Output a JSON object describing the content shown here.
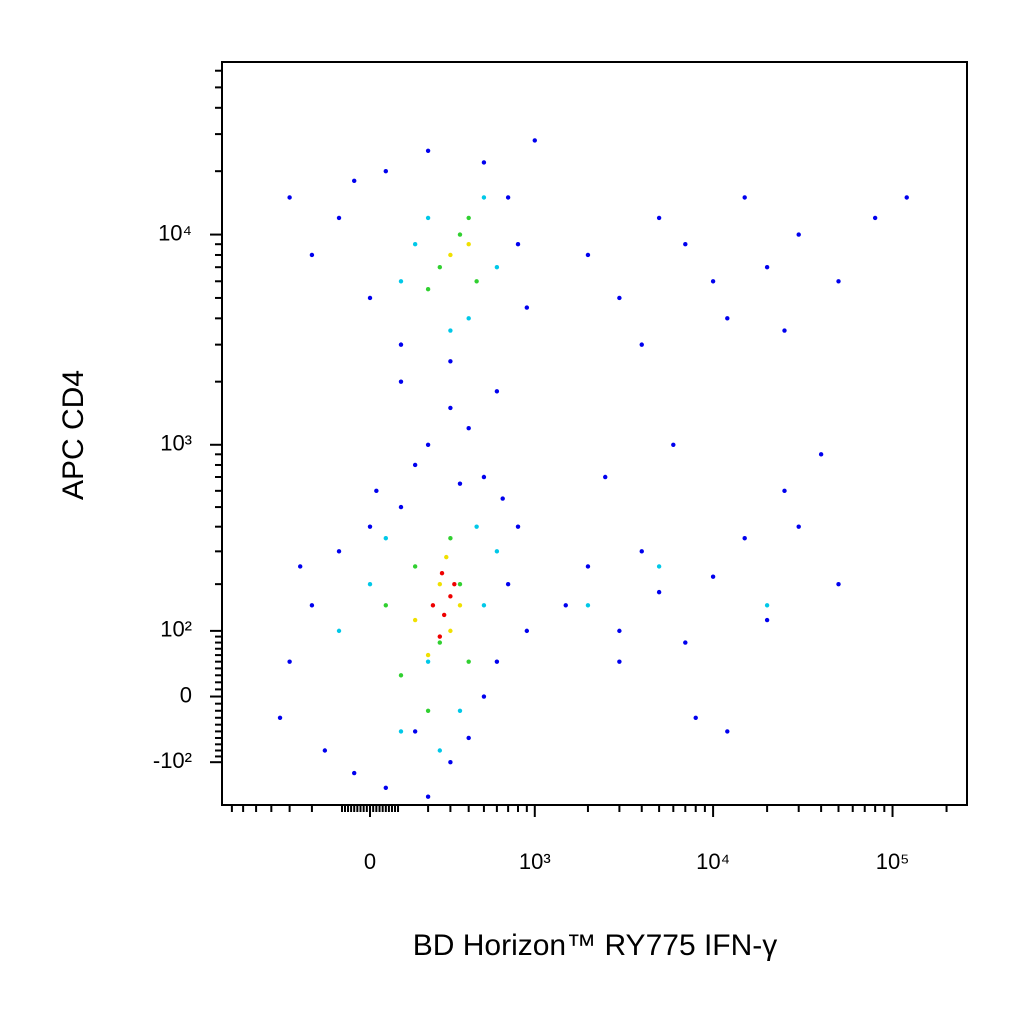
{
  "chart_data": {
    "type": "scatter",
    "x_label": "BD Horizon™ RY775  IFN-γ",
    "y_label": "APC CD4",
    "scale": "biexponential",
    "xlim": [
      -800,
      260000
    ],
    "ylim": [
      -190,
      66000
    ],
    "xticks": [
      0,
      {
        "value": 1000,
        "label": "10³"
      },
      {
        "value": 10000,
        "label": "10⁴"
      },
      {
        "value": 100000,
        "label": "10⁵"
      }
    ],
    "yticks": [
      {
        "value": -100,
        "label": "-10²"
      },
      0,
      {
        "value": 100,
        "label": "10²"
      },
      {
        "value": 1000,
        "label": "10³"
      },
      {
        "value": 10000,
        "label": "10⁴"
      }
    ],
    "xminorticks": [
      -700,
      -600,
      -500,
      -400,
      -300,
      -200,
      -90,
      -80,
      -70,
      -60,
      -50,
      -40,
      -30,
      -20,
      -10,
      10,
      20,
      30,
      40,
      50,
      60,
      70,
      80,
      90,
      200,
      300,
      400,
      500,
      600,
      700,
      800,
      900,
      2000,
      3000,
      4000,
      5000,
      6000,
      7000,
      8000,
      9000,
      20000,
      30000,
      40000,
      50000,
      60000,
      70000,
      80000,
      90000,
      200000
    ],
    "yminorticks": [
      -90,
      -80,
      -70,
      -60,
      -50,
      -40,
      -30,
      -20,
      -10,
      10,
      20,
      30,
      40,
      50,
      60,
      70,
      80,
      90,
      200,
      300,
      400,
      500,
      600,
      700,
      800,
      900,
      2000,
      3000,
      4000,
      5000,
      6000,
      7000,
      8000,
      9000,
      20000,
      30000,
      40000,
      50000,
      60000
    ],
    "series": [
      {
        "color": "#0000ee",
        "x": [
          -300,
          -200,
          -150,
          -100,
          -50,
          0,
          50,
          100,
          150,
          200,
          300,
          400,
          500,
          600,
          700,
          800,
          900,
          -250,
          -350,
          20,
          650,
          350,
          200,
          300,
          150,
          400,
          500,
          100,
          600,
          -200,
          -100,
          0,
          50,
          100,
          200,
          300,
          500,
          700,
          800,
          900,
          -300,
          -50,
          1000,
          1500,
          2000,
          3000,
          4000,
          5000,
          7000,
          10000,
          15000,
          20000,
          30000,
          50000,
          3000,
          8000,
          12000,
          25000,
          2500,
          6000,
          40000,
          2000,
          3000,
          5000,
          7000,
          10000,
          15000,
          20000,
          30000,
          50000,
          80000,
          4000,
          12000,
          120000,
          25000
        ],
        "values": [
          50,
          150,
          -80,
          300,
          -120,
          400,
          -150,
          500,
          -50,
          -170,
          -100,
          -60,
          0,
          50,
          200,
          400,
          100,
          250,
          -30,
          600,
          550,
          650,
          1000,
          1500,
          800,
          1200,
          700,
          2000,
          1800,
          8000,
          12000,
          5000,
          20000,
          3000,
          25000,
          2500,
          22000,
          15000,
          9000,
          4500,
          15000,
          18000,
          28000,
          150,
          250,
          100,
          300,
          180,
          80,
          220,
          350,
          120,
          400,
          200,
          50,
          -30,
          -50,
          600,
          700,
          1000,
          900,
          8000,
          5000,
          12000,
          9000,
          6000,
          15000,
          7000,
          10000,
          6000,
          12000,
          3000,
          4000,
          15000,
          3500
        ]
      },
      {
        "color": "#00c8e8",
        "x": [
          -100,
          0,
          100,
          200,
          350,
          500,
          600,
          50,
          450,
          250,
          100,
          200,
          400,
          500,
          600,
          300,
          150,
          2000,
          5000,
          20000
        ],
        "values": [
          100,
          200,
          -50,
          50,
          -20,
          150,
          300,
          350,
          400,
          -80,
          6000,
          12000,
          4000,
          15000,
          7000,
          3500,
          9000,
          150,
          250,
          150
        ]
      },
      {
        "color": "#30d030",
        "x": [
          50,
          150,
          250,
          350,
          400,
          100,
          300,
          200,
          250,
          350,
          450,
          200,
          400
        ],
        "values": [
          150,
          250,
          80,
          200,
          50,
          30,
          350,
          -20,
          7000,
          10000,
          6000,
          5500,
          12000
        ]
      },
      {
        "color": "#f0e000",
        "x": [
          150,
          250,
          300,
          350,
          200,
          280,
          300,
          400
        ],
        "values": [
          120,
          200,
          100,
          150,
          60,
          280,
          8000,
          9000
        ]
      },
      {
        "color": "#ee0000",
        "x": [
          220,
          270,
          300,
          250,
          320,
          260
        ],
        "values": [
          150,
          130,
          170,
          90,
          200,
          230
        ]
      }
    ]
  }
}
